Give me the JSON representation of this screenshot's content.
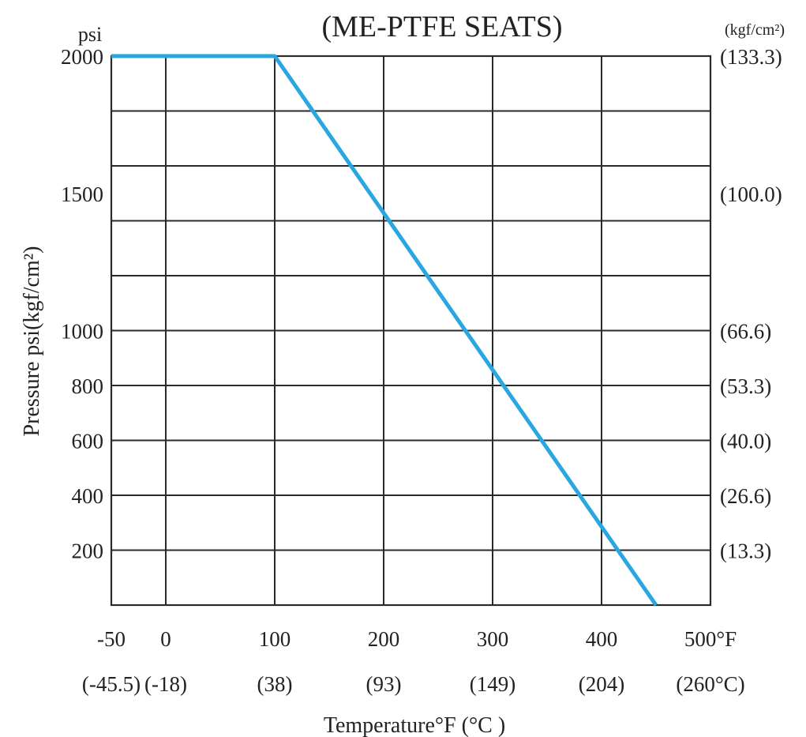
{
  "chart_data": {
    "type": "line",
    "title": "(ME-PTFE  SEATS)",
    "xlabel": "Temperature°F (°C )",
    "ylabel": "Pressure  psi(kgf/cm²)",
    "left_unit": "psi",
    "right_unit": "(kgf/cm²)",
    "xlim": [
      -50,
      500
    ],
    "ylim": [
      0,
      2000
    ],
    "grid": true,
    "x_ticks": [
      {
        "value": -50,
        "label": "-50",
        "celsius": "(-45.5)"
      },
      {
        "value": 0,
        "label": "0",
        "celsius": "(-18)"
      },
      {
        "value": 100,
        "label": "100",
        "celsius": "(38)"
      },
      {
        "value": 200,
        "label": "200",
        "celsius": "(93)"
      },
      {
        "value": 300,
        "label": "300",
        "celsius": "(149)"
      },
      {
        "value": 400,
        "label": "400",
        "celsius": "(204)"
      },
      {
        "value": 500,
        "label": "500°F",
        "celsius": "(260°C)"
      }
    ],
    "y_gridlines": [
      200,
      400,
      600,
      800,
      1000,
      1200,
      1400,
      1600,
      1800,
      2000
    ],
    "y_ticks_left": [
      {
        "value": 2000,
        "label": "2000"
      },
      {
        "value": 1500,
        "label": "1500"
      },
      {
        "value": 1000,
        "label": "1000"
      },
      {
        "value": 800,
        "label": "800"
      },
      {
        "value": 600,
        "label": "600"
      },
      {
        "value": 400,
        "label": "400"
      },
      {
        "value": 200,
        "label": "200"
      }
    ],
    "y_ticks_right": [
      {
        "value": 2000,
        "label": "(133.3)"
      },
      {
        "value": 1500,
        "label": "(100.0)"
      },
      {
        "value": 1000,
        "label": "(66.6)"
      },
      {
        "value": 800,
        "label": "(53.3)"
      },
      {
        "value": 600,
        "label": "(40.0)"
      },
      {
        "value": 400,
        "label": "(26.6)"
      },
      {
        "value": 200,
        "label": "(13.3)"
      }
    ],
    "series": [
      {
        "color": "#2aa7e0",
        "x": [
          -50,
          100,
          450
        ],
        "y": [
          2000,
          2000,
          0
        ]
      }
    ]
  }
}
